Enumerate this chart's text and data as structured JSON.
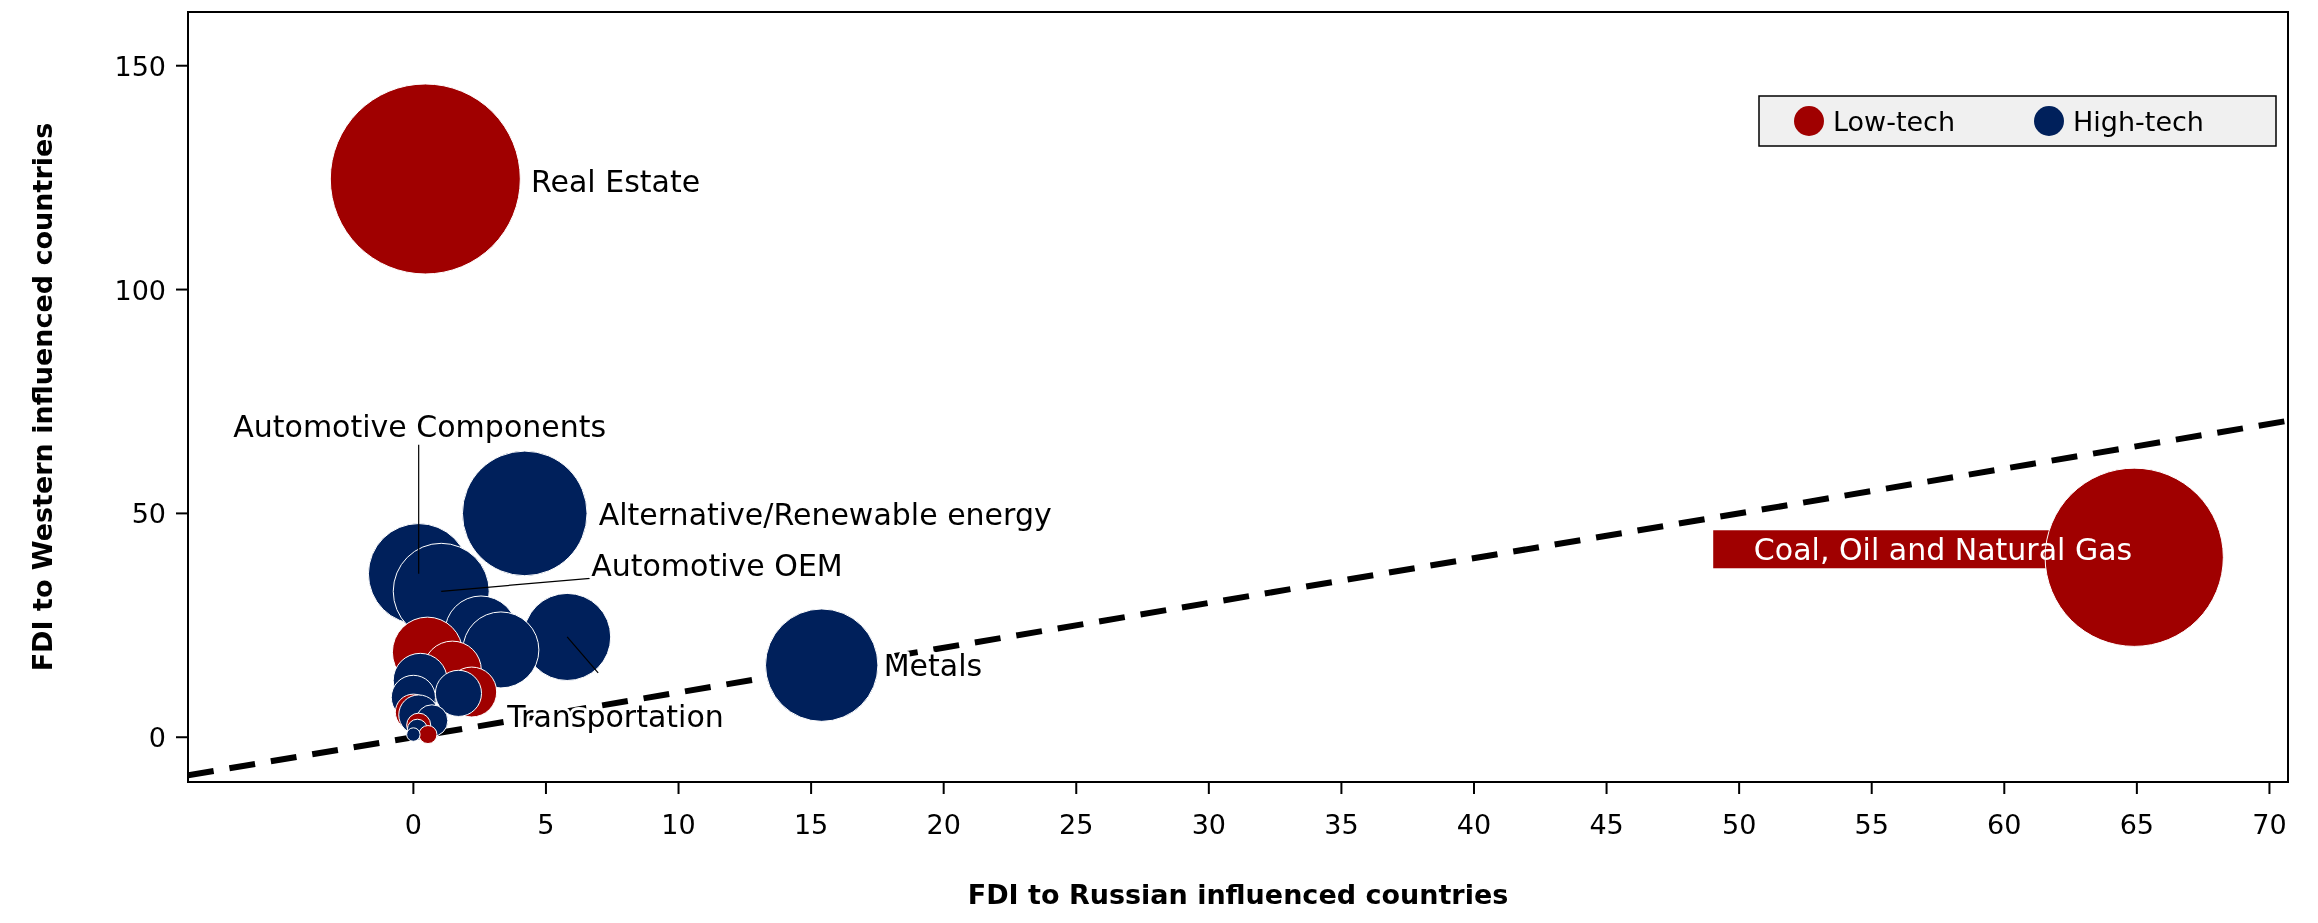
{
  "chart_data": {
    "type": "bubble",
    "xlabel": "FDI to Russian influenced countries",
    "ylabel": "FDI to Western influenced countries",
    "xlim": [
      -8.5,
      70.7
    ],
    "xticks": [
      0,
      5,
      10,
      15,
      20,
      25,
      30,
      35,
      40,
      45,
      50,
      55,
      60,
      65,
      70
    ],
    "ylim": [
      -10,
      162
    ],
    "yticks": [
      0,
      50,
      100,
      150
    ],
    "grid": false,
    "legend": "top right",
    "series": [
      {
        "name": "Low-tech",
        "color": "#a00000",
        "x": [
          0.45,
          64.9,
          0.53,
          1.47,
          2.2,
          0,
          0.2,
          0.55
        ],
        "values": [
          124.7,
          40.2,
          19.0,
          15.0,
          10.1,
          5.6,
          2.7,
          0.6
        ],
        "sizes": [
          1,
          0.88,
          0.136,
          0.093,
          0.069,
          0.036,
          0.016,
          0.009
        ]
      },
      {
        "name": "High-tech",
        "color": "#00205b",
        "x": [
          4.2,
          0.2,
          1.05,
          15.4,
          5.8,
          2.55,
          3.3,
          0.26,
          1.7,
          0,
          0.2,
          0.7,
          0.15,
          0
        ],
        "values": [
          50,
          36.5,
          32.6,
          16.1,
          22.4,
          23.5,
          19.5,
          12.7,
          9.8,
          8.9,
          5,
          3.7,
          1.8,
          0.6
        ],
        "sizes": [
          0.43,
          0.28,
          0.255,
          0.35,
          0.21,
          0.144,
          0.16,
          0.081,
          0.059,
          0.054,
          0.044,
          0.028,
          0.011,
          0.005
        ]
      },
      {
        "type": "line",
        "color": "#000000",
        "line_style": "dashed",
        "x": [
          -8.5,
          70.7
        ],
        "values": [
          -8.5,
          70.7
        ]
      }
    ],
    "annotations": [
      "Real Estate",
      {
        "text": "Coal, Oil and Natural Gas",
        "x": 64.9,
        "y": 40.2
      },
      {
        "text": "Alternative/Renewable energy",
        "x": 4.2,
        "y": 50
      },
      {
        "text": "Automotive Components",
        "x": 0.2,
        "y": 36.5
      },
      {
        "text": "Automotive OEM",
        "x": 1.05,
        "y": 32.6
      },
      {
        "text": "Metals",
        "x": 15.4,
        "y": 16.1
      },
      {
        "text": "Transportation",
        "x": 5.8,
        "y": 22.4
      }
    ]
  }
}
